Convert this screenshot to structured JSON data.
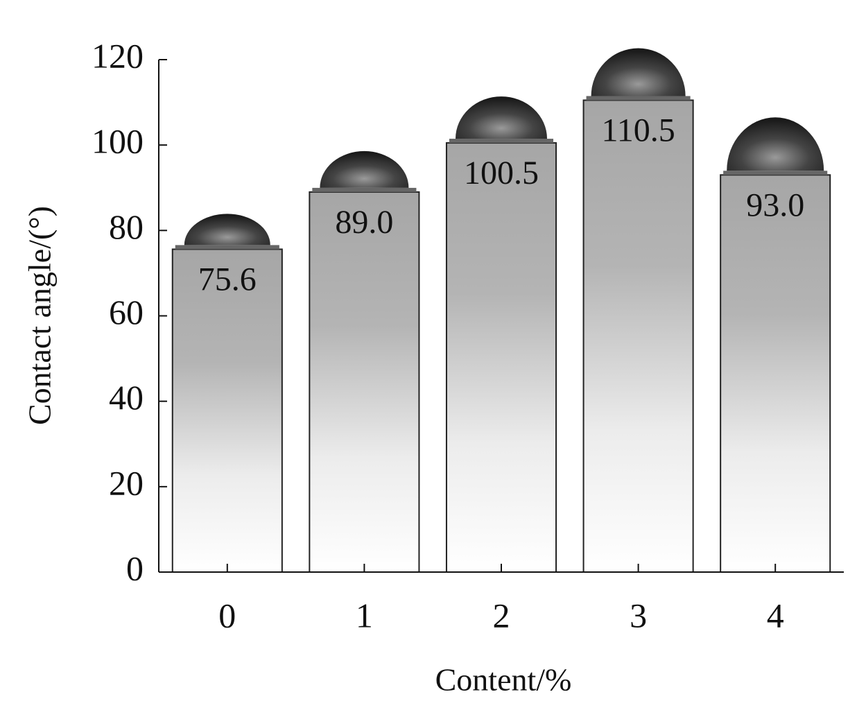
{
  "chart_data": {
    "type": "bar",
    "categories": [
      "0",
      "1",
      "2",
      "3",
      "4"
    ],
    "values": [
      75.6,
      89.0,
      100.5,
      110.5,
      93.0
    ],
    "value_labels": [
      "75.6",
      "89.0",
      "100.5",
      "110.5",
      "93.0"
    ],
    "x_label": "Content/%",
    "y_label": "Contact angle/(°)",
    "ylim": [
      0,
      120
    ],
    "yticks": [
      0,
      20,
      40,
      60,
      80,
      100,
      120
    ],
    "color": "#a6a6a6"
  }
}
